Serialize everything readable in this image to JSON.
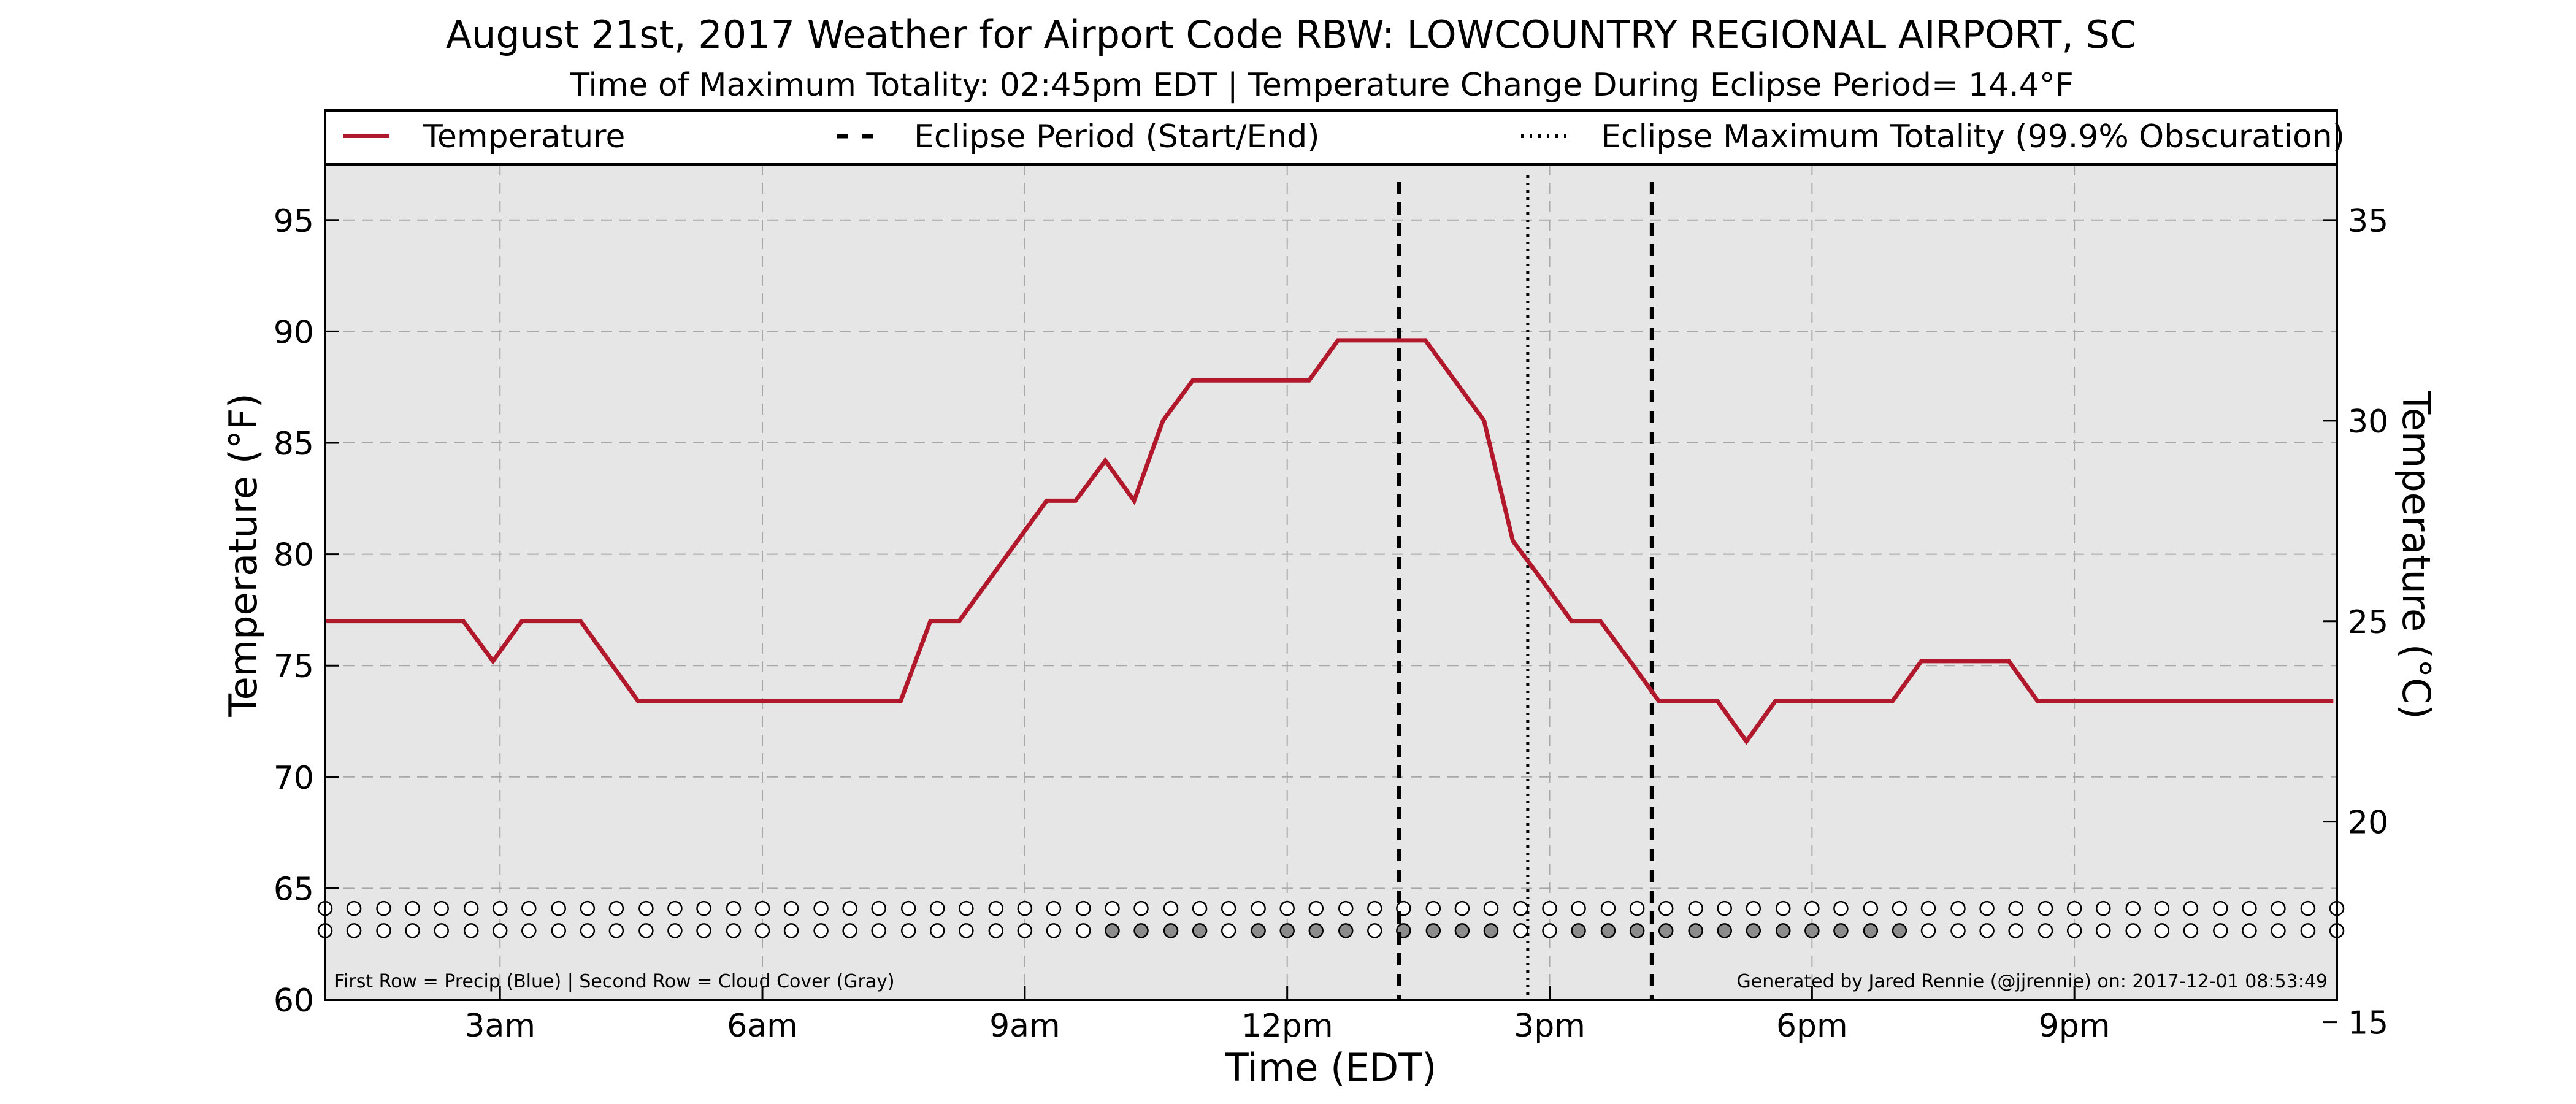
{
  "chart_data": {
    "type": "line",
    "title": "August 21st, 2017 Weather for Airport Code RBW: LOWCOUNTRY REGIONAL AIRPORT, SC",
    "subtitle": "Time of Maximum Totality: 02:45pm EDT | Temperature Change During Eclipse Period= 14.4°F",
    "xlabel": "Time (EDT)",
    "ylabel": "Temperature (°F)",
    "ylabel_right": "Temperature (°C)",
    "xlim": [
      1,
      24
    ],
    "ylim": [
      60,
      97.5
    ],
    "ylim_right": [
      15.56,
      36.39
    ],
    "x_ticks": [
      {
        "value": 3,
        "label": "3am"
      },
      {
        "value": 6,
        "label": "6am"
      },
      {
        "value": 9,
        "label": "9am"
      },
      {
        "value": 12,
        "label": "12pm"
      },
      {
        "value": 15,
        "label": "3pm"
      },
      {
        "value": 18,
        "label": "6pm"
      },
      {
        "value": 21,
        "label": "9pm"
      }
    ],
    "y_ticks": [
      60,
      65,
      70,
      75,
      80,
      85,
      90,
      95
    ],
    "y_ticks_right": [
      15,
      20,
      25,
      30,
      35
    ],
    "grid": true,
    "legend": {
      "placement": "top",
      "entries": [
        "Temperature",
        "Eclipse Period (Start/End)",
        "Eclipse Maximum Totality (99.9% Obscuration)"
      ]
    },
    "series": [
      {
        "name": "Temperature",
        "color": "#b2182b",
        "x": [
          1.0,
          2.58,
          2.92,
          3.25,
          3.92,
          4.58,
          7.58,
          7.92,
          8.25,
          9.25,
          9.58,
          9.92,
          10.25,
          10.58,
          10.92,
          12.25,
          12.58,
          13.25,
          13.58,
          14.25,
          14.58,
          14.92,
          15.25,
          15.58,
          15.92,
          16.25,
          16.58,
          16.92,
          17.25,
          17.58,
          17.92,
          18.25,
          18.58,
          18.92,
          19.25,
          19.58,
          19.92,
          20.25,
          20.58,
          21.25,
          22.25,
          23.25,
          23.96
        ],
        "values": [
          77.0,
          77.0,
          75.2,
          77.0,
          77.0,
          73.4,
          73.4,
          77.0,
          77.0,
          82.4,
          82.4,
          84.2,
          82.4,
          86.0,
          87.8,
          87.8,
          89.6,
          89.6,
          89.6,
          86.0,
          80.6,
          78.8,
          77.0,
          77.0,
          75.2,
          73.4,
          73.4,
          73.4,
          71.6,
          73.4,
          73.4,
          73.4,
          73.4,
          73.4,
          75.2,
          75.2,
          75.2,
          75.2,
          73.4,
          73.4,
          73.4,
          73.4,
          73.4
        ]
      }
    ],
    "eclipse_period": {
      "start": "01:17pm",
      "end": "04:10pm",
      "start_hour": 13.28,
      "end_hour": 16.17
    },
    "max_totality": {
      "time": "02:45pm",
      "hour": 14.75
    },
    "observation_rows": {
      "note": "First Row = Precip (Blue) | Second Row = Cloud Cover (Gray)",
      "hours": [
        1.0,
        1.33,
        1.67,
        2.0,
        2.33,
        2.67,
        3.0,
        3.33,
        3.67,
        4.0,
        4.33,
        4.67,
        5.0,
        5.33,
        5.67,
        6.0,
        6.33,
        6.67,
        7.0,
        7.33,
        7.67,
        8.0,
        8.33,
        8.67,
        9.0,
        9.33,
        9.67,
        10.0,
        10.33,
        10.67,
        11.0,
        11.33,
        11.67,
        12.0,
        12.33,
        12.67,
        13.0,
        13.33,
        13.67,
        14.0,
        14.33,
        14.67,
        15.0,
        15.33,
        15.67,
        16.0,
        16.33,
        16.67,
        17.0,
        17.33,
        17.67,
        18.0,
        18.33,
        18.67,
        19.0,
        19.33,
        19.67,
        20.0,
        20.33,
        20.67,
        21.0,
        21.33,
        21.67,
        22.0,
        22.33,
        22.67,
        23.0,
        23.33,
        23.67,
        24.0
      ],
      "precip": [
        0,
        0,
        0,
        0,
        0,
        0,
        0,
        0,
        0,
        0,
        0,
        0,
        0,
        0,
        0,
        0,
        0,
        0,
        0,
        0,
        0,
        0,
        0,
        0,
        0,
        0,
        0,
        0,
        0,
        0,
        0,
        0,
        0,
        0,
        0,
        0,
        0,
        0,
        0,
        0,
        0,
        0,
        0,
        0,
        0,
        0,
        0,
        0,
        0,
        0,
        0,
        0,
        0,
        0,
        0,
        0,
        0,
        0,
        0,
        0,
        0,
        0,
        0,
        0,
        0,
        0,
        0,
        0,
        0,
        0
      ],
      "cloud": [
        0,
        0,
        0,
        0,
        0,
        0,
        0,
        0,
        0,
        0,
        0,
        0,
        0,
        0,
        0,
        0,
        0,
        0,
        0,
        0,
        0,
        0,
        0,
        0,
        0,
        0,
        0,
        1,
        1,
        1,
        1,
        0,
        1,
        1,
        1,
        1,
        0,
        1,
        1,
        1,
        1,
        0,
        0,
        1,
        1,
        1,
        1,
        1,
        1,
        1,
        1,
        1,
        1,
        1,
        1,
        0,
        0,
        0,
        0,
        0,
        0,
        0,
        0,
        0,
        0,
        0,
        0,
        0,
        0,
        0
      ]
    },
    "footer_left": "First Row = Precip (Blue) | Second Row = Cloud Cover (Gray)",
    "footer_right": "Generated by Jared Rennie (@jjrennie) on: 2017-12-01 08:53:49",
    "colors": {
      "temperature": "#b2182b",
      "plot_background": "#e6e6e6",
      "grid": "#a8a8a8",
      "cloud_fill": "#8c8c8c",
      "precip_fill": "#4a78c8"
    }
  }
}
